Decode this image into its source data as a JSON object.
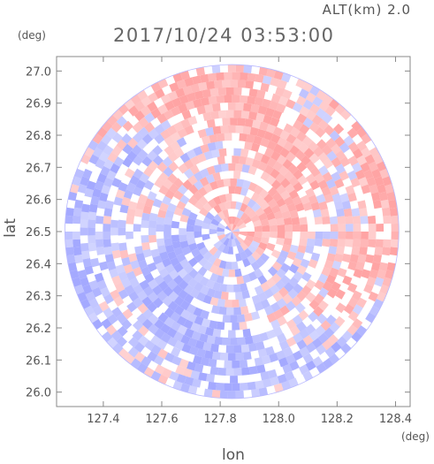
{
  "header": {
    "altitude_label": "ALT(km) 2.0",
    "datetime": "2017/10/24 03:53:00"
  },
  "chart_data": {
    "type": "heatmap",
    "title": "2017/10/24 03:53:00",
    "subtitle": "ALT(km) 2.0",
    "xlabel": "lon",
    "ylabel": "lat",
    "x_unit": "(deg)",
    "y_unit": "(deg)",
    "xlim": [
      127.24,
      128.45
    ],
    "ylim": [
      25.955,
      27.045
    ],
    "x_ticks": [
      "127.4",
      "127.6",
      "127.8",
      "128.0",
      "128.2",
      "128.4"
    ],
    "x_tick_values": [
      127.4,
      127.6,
      127.8,
      128.0,
      128.2,
      128.4
    ],
    "y_ticks": [
      "26.0",
      "26.1",
      "26.2",
      "26.3",
      "26.4",
      "26.5",
      "26.6",
      "26.7",
      "26.8",
      "26.9",
      "27.0"
    ],
    "y_tick_values": [
      26.0,
      26.1,
      26.2,
      26.3,
      26.4,
      26.5,
      26.6,
      26.7,
      26.8,
      26.9,
      27.0
    ],
    "radar_center": {
      "lon": 127.84,
      "lat": 26.5
    },
    "radar_coverage_deg_lat": 0.52,
    "colormap": {
      "positive": "#ff9a9a",
      "negative": "#9aa0ff",
      "zero": "#ffffff"
    },
    "grid": false
  }
}
